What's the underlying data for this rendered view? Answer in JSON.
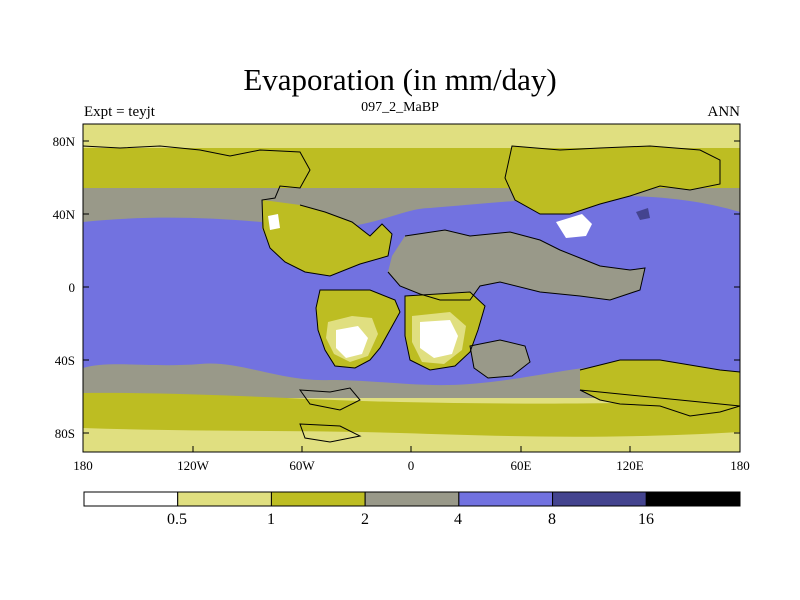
{
  "title": "Evaporation (in mm/day)",
  "subtitle_left": "Expt = teyjt",
  "subtitle_center": "097_2_MaBP",
  "subtitle_right": "ANN",
  "map": {
    "lon_range": [
      -180,
      180
    ],
    "lat_range": [
      -90,
      90
    ],
    "y_ticks": [
      "80N",
      "40N",
      "0",
      "40S",
      "80S"
    ],
    "x_ticks": [
      "180",
      "120W",
      "60W",
      "0",
      "60E",
      "120E",
      "180"
    ]
  },
  "colorbar": {
    "levels": [
      "0.5",
      "1",
      "2",
      "4",
      "8",
      "16"
    ],
    "colors": [
      "#ffffff",
      "#e0df80",
      "#bdbd22",
      "#999989",
      "#7272e0",
      "#44448f",
      "#000000"
    ]
  }
}
